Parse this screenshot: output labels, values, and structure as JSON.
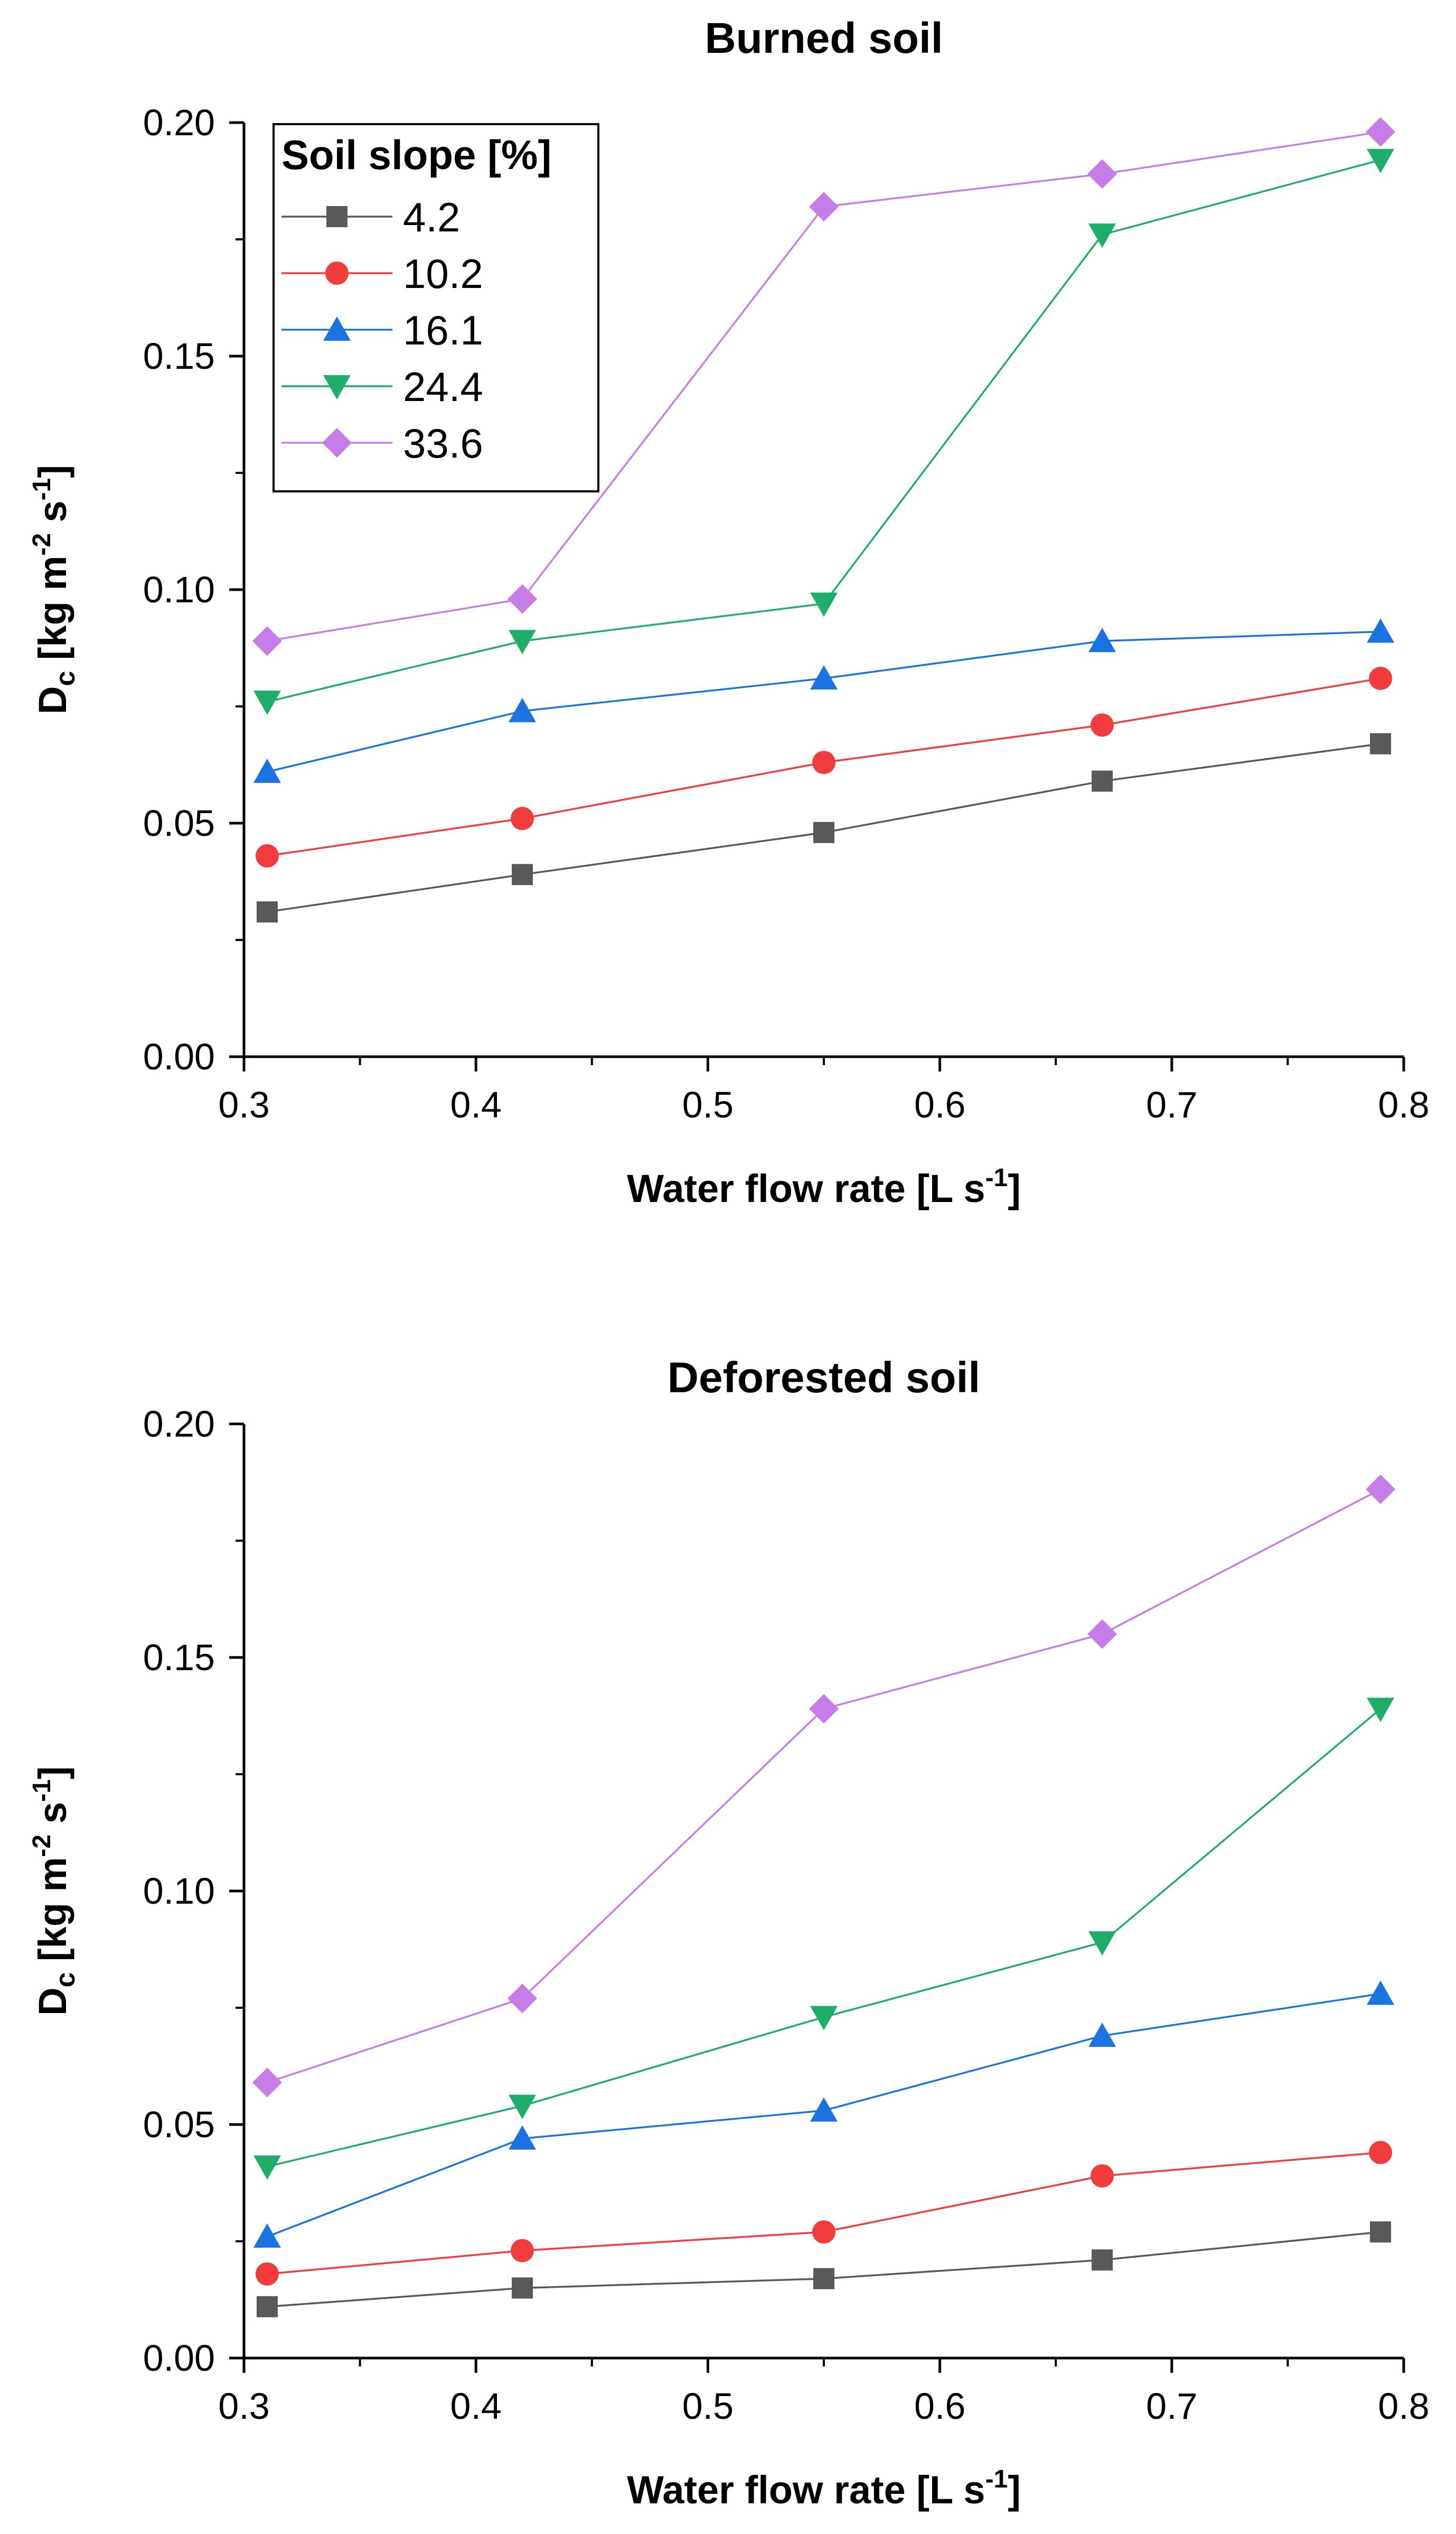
{
  "legend": {
    "title": "Soil slope [%]",
    "placement": "top-left"
  },
  "chart_data": [
    {
      "type": "line",
      "title": "Burned soil",
      "xlabel": "Water flow rate [L s-1]",
      "xlabel_parts": {
        "base": "Water flow rate [L s",
        "sup": "-1",
        "end": "]"
      },
      "ylabel": "Dc [kg m-2 s-1]",
      "ylabel_parts": {
        "d": "D",
        "sub": "c",
        "unit1": " [kg m",
        "sup1": "-2",
        "unit2": " s",
        "sup2": "-1",
        "end": "]"
      },
      "xlim": [
        0.3,
        0.8
      ],
      "ylim": [
        0.0,
        0.2
      ],
      "xticks": [
        "0.3",
        "0.4",
        "0.5",
        "0.6",
        "0.7",
        "0.8"
      ],
      "yticks": [
        "0.00",
        "0.05",
        "0.10",
        "0.15",
        "0.20"
      ],
      "x": [
        0.31,
        0.42,
        0.55,
        0.67,
        0.79
      ],
      "series": [
        {
          "name": "4.2",
          "marker": "square",
          "color": "#595959",
          "values": [
            0.031,
            0.039,
            0.048,
            0.059,
            0.067
          ]
        },
        {
          "name": "10.2",
          "marker": "circle",
          "color": "#f03c3c",
          "values": [
            0.043,
            0.051,
            0.063,
            0.071,
            0.081
          ]
        },
        {
          "name": "16.1",
          "marker": "triangle-up",
          "color": "#1a73e0",
          "values": [
            0.061,
            0.074,
            0.081,
            0.089,
            0.091
          ]
        },
        {
          "name": "24.4",
          "marker": "triangle-down",
          "color": "#1fae6a",
          "values": [
            0.076,
            0.089,
            0.097,
            0.176,
            0.192
          ]
        },
        {
          "name": "33.6",
          "marker": "diamond",
          "color": "#c77de8",
          "values": [
            0.089,
            0.098,
            0.182,
            0.189,
            0.198
          ]
        }
      ]
    },
    {
      "type": "line",
      "title": "Deforested soil",
      "xlabel": "Water flow rate [L s-1]",
      "xlabel_parts": {
        "base": "Water flow rate [L s",
        "sup": "-1",
        "end": "]"
      },
      "ylabel": "Dc [kg m-2 s-1]",
      "ylabel_parts": {
        "d": "D",
        "sub": "c",
        "unit1": " [kg m",
        "sup1": "-2",
        "unit2": " s",
        "sup2": "-1",
        "end": "]"
      },
      "xlim": [
        0.3,
        0.8
      ],
      "ylim": [
        0.0,
        0.2
      ],
      "xticks": [
        "0.3",
        "0.4",
        "0.5",
        "0.6",
        "0.7",
        "0.8"
      ],
      "yticks": [
        "0.00",
        "0.05",
        "0.10",
        "0.15",
        "0.20"
      ],
      "x": [
        0.31,
        0.42,
        0.55,
        0.67,
        0.79
      ],
      "series": [
        {
          "name": "4.2",
          "marker": "square",
          "color": "#595959",
          "values": [
            0.011,
            0.015,
            0.017,
            0.021,
            0.027
          ]
        },
        {
          "name": "10.2",
          "marker": "circle",
          "color": "#f03c3c",
          "values": [
            0.018,
            0.023,
            0.027,
            0.039,
            0.044
          ]
        },
        {
          "name": "16.1",
          "marker": "triangle-up",
          "color": "#1a73e0",
          "values": [
            0.026,
            0.047,
            0.053,
            0.069,
            0.078
          ]
        },
        {
          "name": "24.4",
          "marker": "triangle-down",
          "color": "#1fae6a",
          "values": [
            0.041,
            0.054,
            0.073,
            0.089,
            0.139
          ]
        },
        {
          "name": "33.6",
          "marker": "diamond",
          "color": "#c77de8",
          "values": [
            0.059,
            0.077,
            0.139,
            0.155,
            0.186
          ]
        }
      ]
    }
  ]
}
